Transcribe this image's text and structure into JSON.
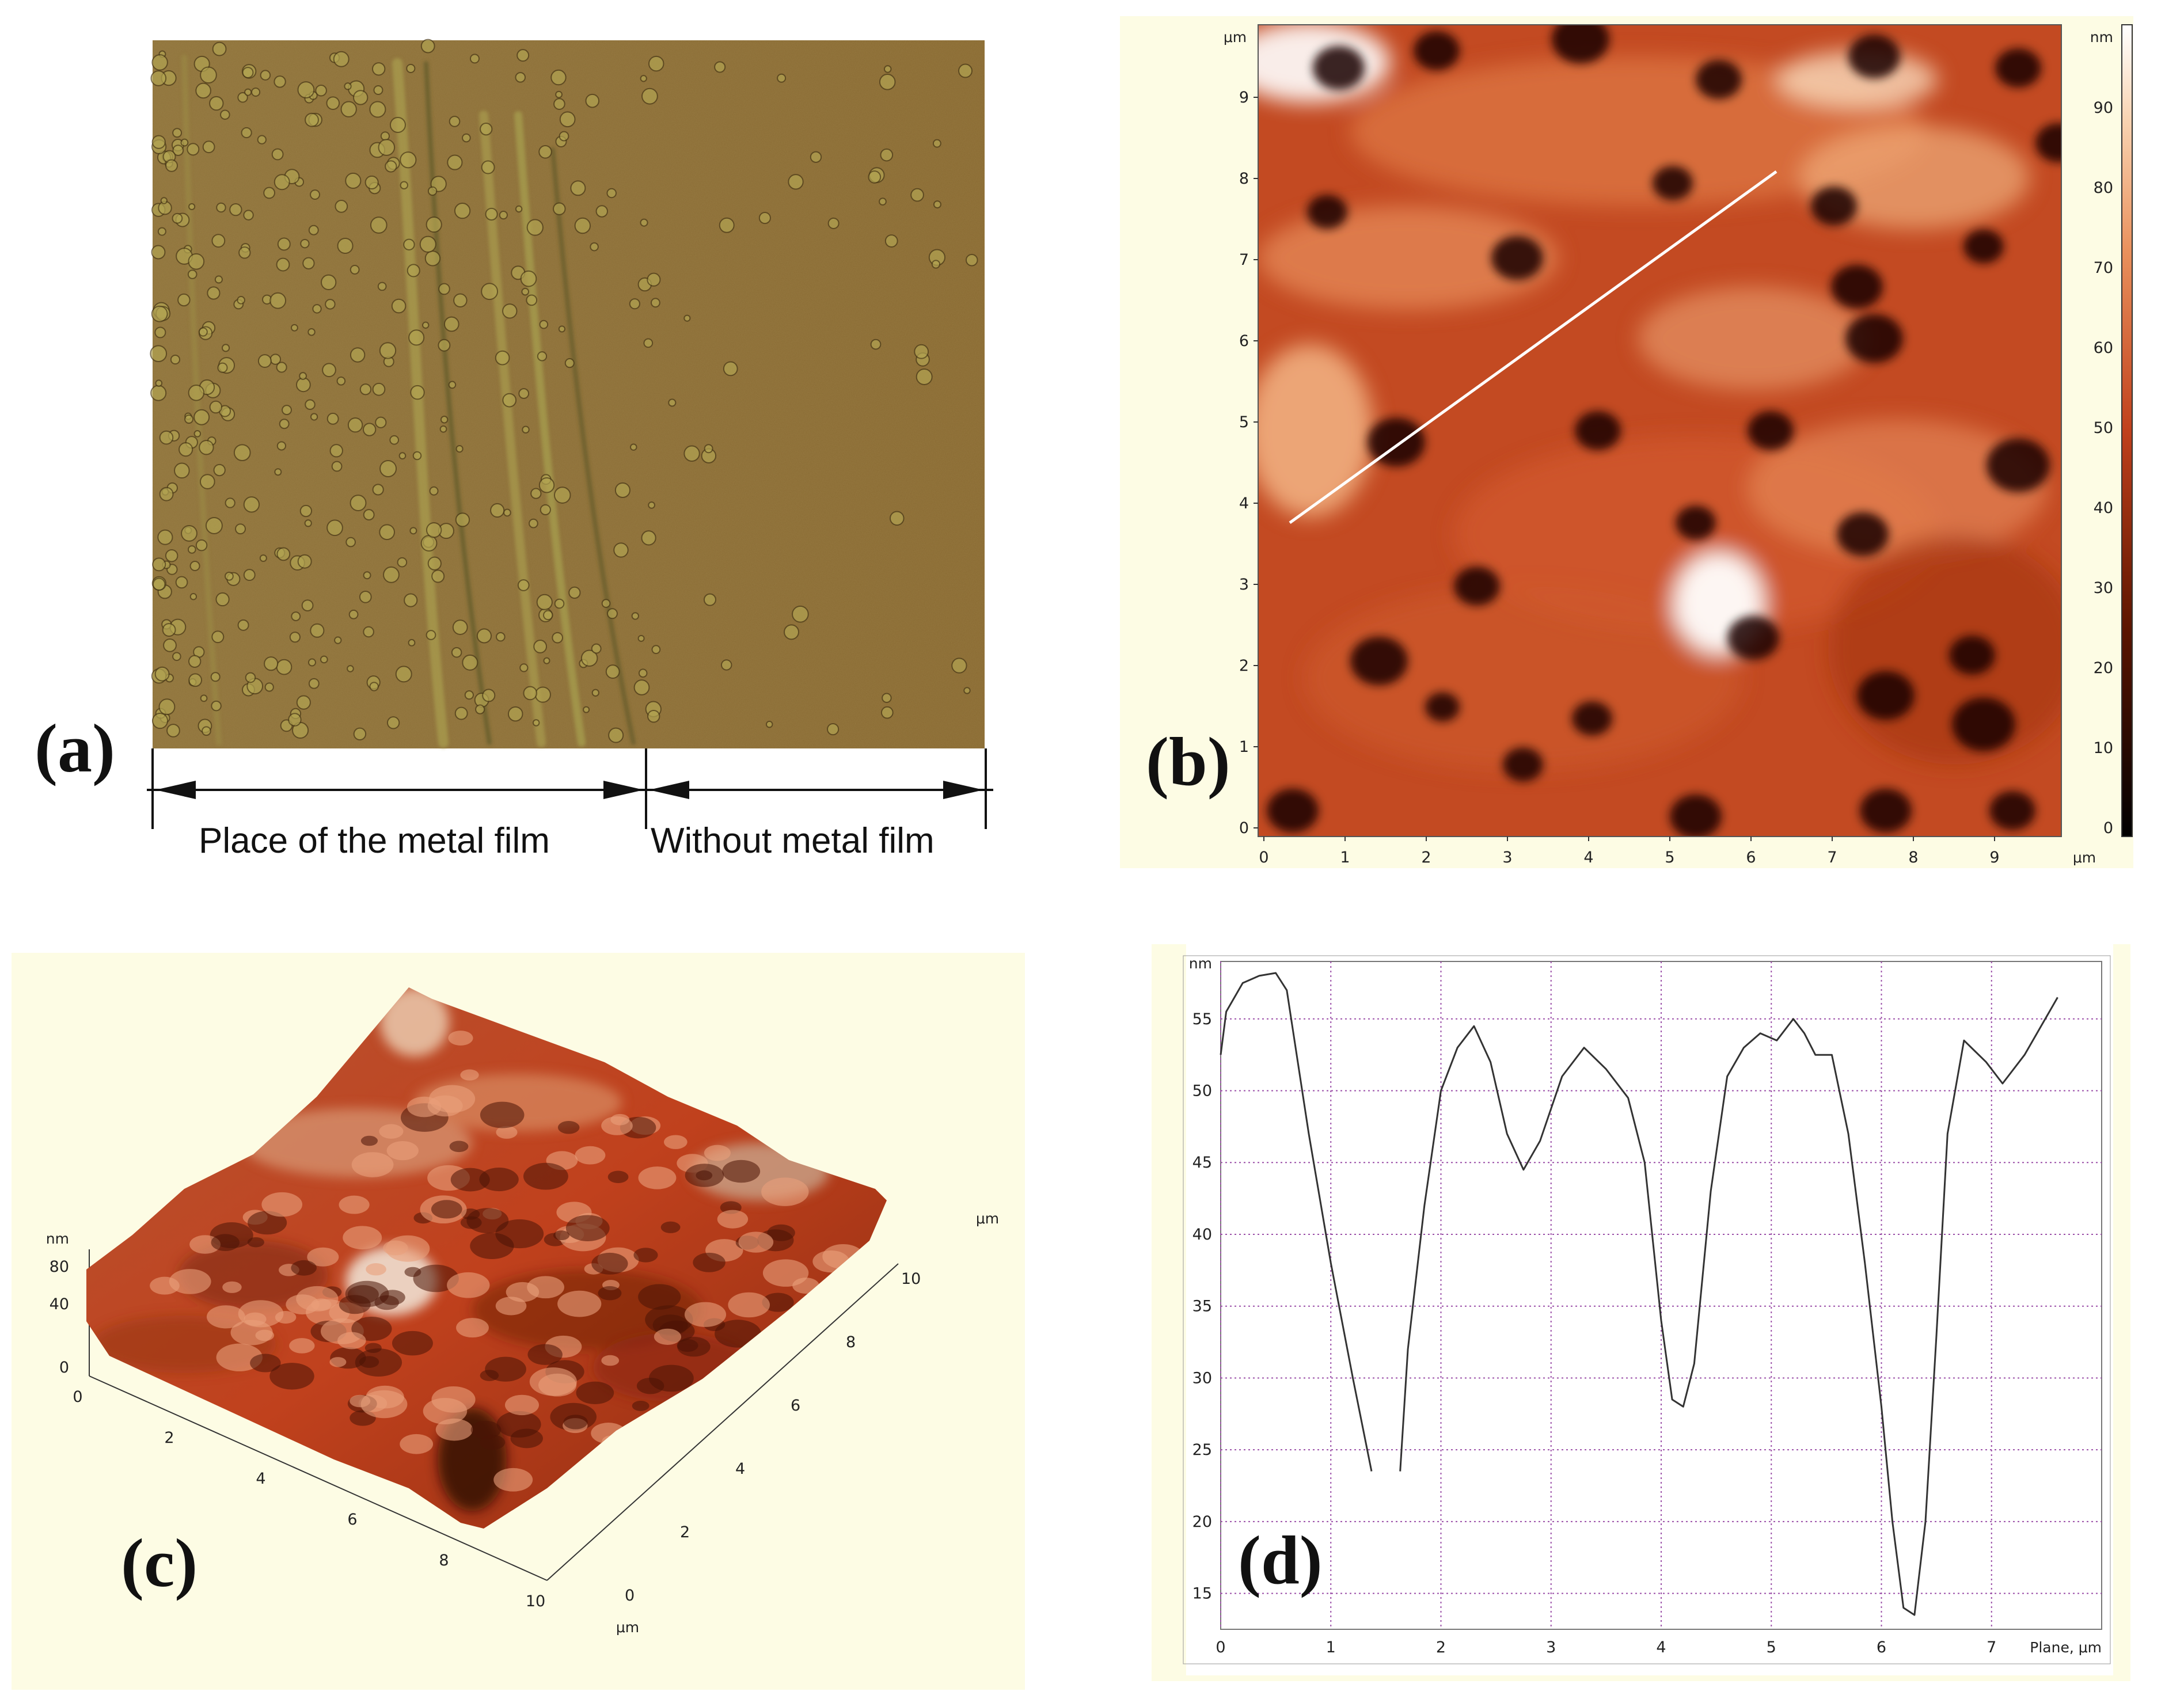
{
  "panels": {
    "a": {
      "label": "(a)",
      "caption_left": "Place of the metal film",
      "caption_right": "Without metal film"
    },
    "b": {
      "label": "(b)",
      "axis_unit": "μm",
      "colorbar_unit": "nm",
      "y_ticks": [
        "0",
        "1",
        "2",
        "3",
        "4",
        "5",
        "6",
        "7",
        "8",
        "9"
      ],
      "x_ticks": [
        "0",
        "1",
        "2",
        "3",
        "4",
        "5",
        "6",
        "7",
        "8",
        "9"
      ],
      "colorbar_ticks": [
        "0",
        "10",
        "20",
        "30",
        "40",
        "50",
        "60",
        "70",
        "80",
        "90"
      ]
    },
    "c": {
      "label": "(c)",
      "z_unit": "nm",
      "z_ticks": [
        "0",
        "40",
        "80"
      ],
      "x_ticks": [
        "0",
        "2",
        "4",
        "6",
        "8",
        "10"
      ],
      "y_ticks": [
        "0",
        "2",
        "4",
        "6",
        "8",
        "10"
      ],
      "x_unit": "μm",
      "y_unit": "μm"
    },
    "d": {
      "label": "(d)",
      "y_unit": "nm",
      "x_label": "Plane, μm"
    }
  },
  "chart_data": {
    "type": "line",
    "xlim": [
      0,
      8
    ],
    "ylim": [
      12.5,
      59
    ],
    "x_ticks": [
      0,
      1,
      2,
      3,
      4,
      5,
      6,
      7
    ],
    "y_ticks": [
      15,
      20,
      25,
      30,
      35,
      40,
      45,
      50,
      55
    ],
    "grid": true,
    "series": [
      {
        "x": [
          0,
          0.05,
          0.2,
          0.35,
          0.5,
          0.6,
          0.8,
          1.0,
          1.2,
          1.37
        ],
        "y": [
          52.5,
          55.5,
          57.5,
          58,
          58.2,
          57,
          47,
          38,
          30,
          23.5
        ]
      },
      {
        "x": [
          1.63,
          1.7,
          1.85,
          2.0,
          2.15,
          2.3,
          2.45,
          2.6,
          2.75,
          2.9,
          3.1,
          3.3,
          3.5,
          3.7,
          3.85,
          4.0,
          4.1,
          4.2,
          4.3,
          4.45,
          4.6,
          4.75,
          4.9,
          5.05,
          5.2,
          5.3,
          5.4,
          5.55,
          5.7,
          5.85,
          6.0,
          6.1,
          6.2,
          6.3,
          6.4,
          6.5,
          6.6,
          6.75,
          6.95,
          7.1,
          7.3,
          7.6
        ],
        "y": [
          23.5,
          32,
          42,
          50,
          53,
          54.5,
          52,
          47,
          44.5,
          46.5,
          51,
          53,
          51.5,
          49.5,
          45,
          34,
          28.5,
          28,
          31,
          43,
          51,
          53,
          54,
          53.5,
          55,
          54,
          52.5,
          52.5,
          47,
          38,
          28,
          20,
          14,
          13.5,
          20,
          33,
          47,
          53.5,
          52,
          50.5,
          52.5,
          56.5
        ]
      }
    ]
  }
}
